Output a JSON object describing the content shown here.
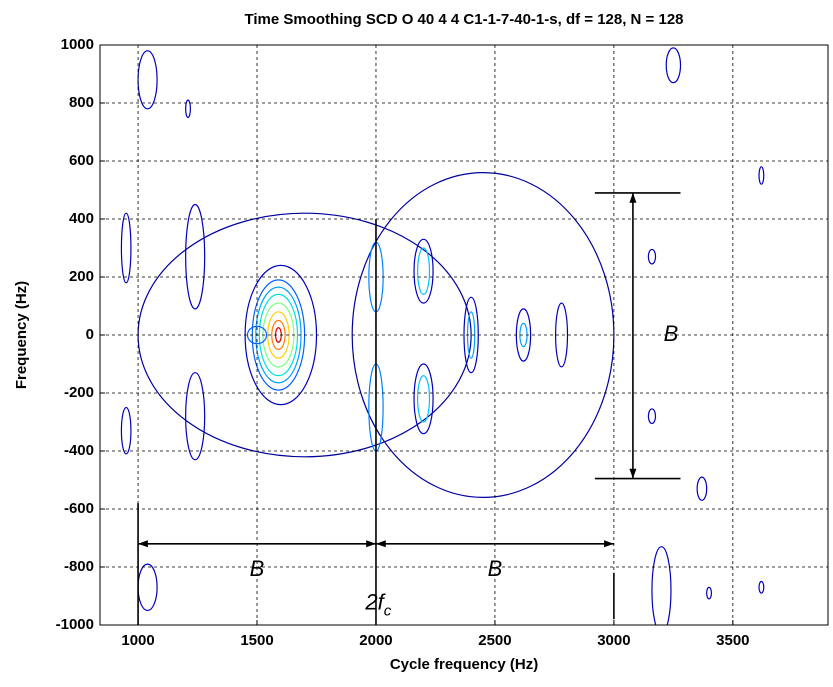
{
  "chart_data": {
    "type": "contour",
    "title": "Time Smoothing SCD  O 40 4 4 C1-1-7-40-1-s, df = 128, N = 128",
    "x_label": "Cycle frequency (Hz)",
    "y_label": "Frequency (Hz)",
    "xlim": [
      840,
      3900
    ],
    "ylim": [
      -1000,
      1000
    ],
    "xticks": [
      1000,
      1500,
      2000,
      2500,
      3000,
      3500
    ],
    "yticks": [
      -1000,
      -800,
      -600,
      -400,
      -200,
      0,
      200,
      400,
      600,
      800,
      1000
    ],
    "grid": true,
    "contours": [
      {
        "x": 1700,
        "y": 0,
        "rx": 700,
        "ry": 420,
        "color": "#0000a0"
      },
      {
        "x": 2450,
        "y": 0,
        "rx": 550,
        "ry": 560,
        "color": "#0000a0"
      },
      {
        "x": 1600,
        "y": 0,
        "rx": 150,
        "ry": 240,
        "color": "#0000c0"
      },
      {
        "x": 1590,
        "y": 0,
        "rx": 110,
        "ry": 190,
        "color": "#0060ff"
      },
      {
        "x": 1590,
        "y": 0,
        "rx": 95,
        "ry": 165,
        "color": "#00a0ff"
      },
      {
        "x": 1590,
        "y": 0,
        "rx": 80,
        "ry": 140,
        "color": "#00e0e0"
      },
      {
        "x": 1590,
        "y": 0,
        "rx": 65,
        "ry": 110,
        "color": "#80ff80"
      },
      {
        "x": 1590,
        "y": 0,
        "rx": 45,
        "ry": 80,
        "color": "#ffd000"
      },
      {
        "x": 1590,
        "y": 0,
        "rx": 28,
        "ry": 50,
        "color": "#ff8000"
      },
      {
        "x": 1590,
        "y": 0,
        "rx": 12,
        "ry": 25,
        "color": "#e00000"
      },
      {
        "x": 1500,
        "y": 0,
        "rx": 40,
        "ry": 30,
        "color": "#0060ff"
      },
      {
        "x": 2200,
        "y": 220,
        "rx": 40,
        "ry": 110,
        "color": "#0000c0"
      },
      {
        "x": 2200,
        "y": 220,
        "rx": 25,
        "ry": 80,
        "color": "#00c0ff"
      },
      {
        "x": 2200,
        "y": -220,
        "rx": 40,
        "ry": 120,
        "color": "#0000c0"
      },
      {
        "x": 2200,
        "y": -220,
        "rx": 25,
        "ry": 80,
        "color": "#00c0ff"
      },
      {
        "x": 2000,
        "y": -250,
        "rx": 30,
        "ry": 150,
        "color": "#0080ff"
      },
      {
        "x": 2000,
        "y": 200,
        "rx": 30,
        "ry": 120,
        "color": "#0080ff"
      },
      {
        "x": 2400,
        "y": 0,
        "rx": 30,
        "ry": 130,
        "color": "#0000c0"
      },
      {
        "x": 2400,
        "y": 0,
        "rx": 15,
        "ry": 80,
        "color": "#00a0ff"
      },
      {
        "x": 2620,
        "y": 0,
        "rx": 30,
        "ry": 90,
        "color": "#0000c0"
      },
      {
        "x": 2620,
        "y": 0,
        "rx": 15,
        "ry": 40,
        "color": "#00a0ff"
      },
      {
        "x": 2780,
        "y": 0,
        "rx": 25,
        "ry": 110,
        "color": "#0000c0"
      },
      {
        "x": 1040,
        "y": 880,
        "rx": 40,
        "ry": 100,
        "color": "#0000c0"
      },
      {
        "x": 1040,
        "y": -870,
        "rx": 40,
        "ry": 80,
        "color": "#0000c0"
      },
      {
        "x": 1210,
        "y": 780,
        "rx": 10,
        "ry": 30,
        "color": "#0000c0"
      },
      {
        "x": 1240,
        "y": 270,
        "rx": 40,
        "ry": 180,
        "color": "#0000c0"
      },
      {
        "x": 1240,
        "y": -280,
        "rx": 40,
        "ry": 150,
        "color": "#0000c0"
      },
      {
        "x": 950,
        "y": 300,
        "rx": 20,
        "ry": 120,
        "color": "#0000c0"
      },
      {
        "x": 950,
        "y": -330,
        "rx": 20,
        "ry": 80,
        "color": "#0000c0"
      },
      {
        "x": 3160,
        "y": -280,
        "rx": 15,
        "ry": 25,
        "color": "#0000c0"
      },
      {
        "x": 3160,
        "y": 270,
        "rx": 15,
        "ry": 25,
        "color": "#0000c0"
      },
      {
        "x": 3370,
        "y": -530,
        "rx": 20,
        "ry": 40,
        "color": "#0000c0"
      },
      {
        "x": 3250,
        "y": 930,
        "rx": 30,
        "ry": 60,
        "color": "#0000c0"
      },
      {
        "x": 3200,
        "y": -880,
        "rx": 40,
        "ry": 150,
        "color": "#0000c0"
      },
      {
        "x": 3620,
        "y": 550,
        "rx": 10,
        "ry": 30,
        "color": "#0000c0"
      },
      {
        "x": 3620,
        "y": -870,
        "rx": 10,
        "ry": 20,
        "color": "#0000c0"
      },
      {
        "x": 3400,
        "y": -890,
        "rx": 10,
        "ry": 20,
        "color": "#0000c0"
      }
    ],
    "annotations": [
      {
        "text": "B"
      },
      {
        "text": "B"
      },
      {
        "text": "B"
      },
      {
        "text": "2f",
        "sub": "c"
      }
    ]
  }
}
